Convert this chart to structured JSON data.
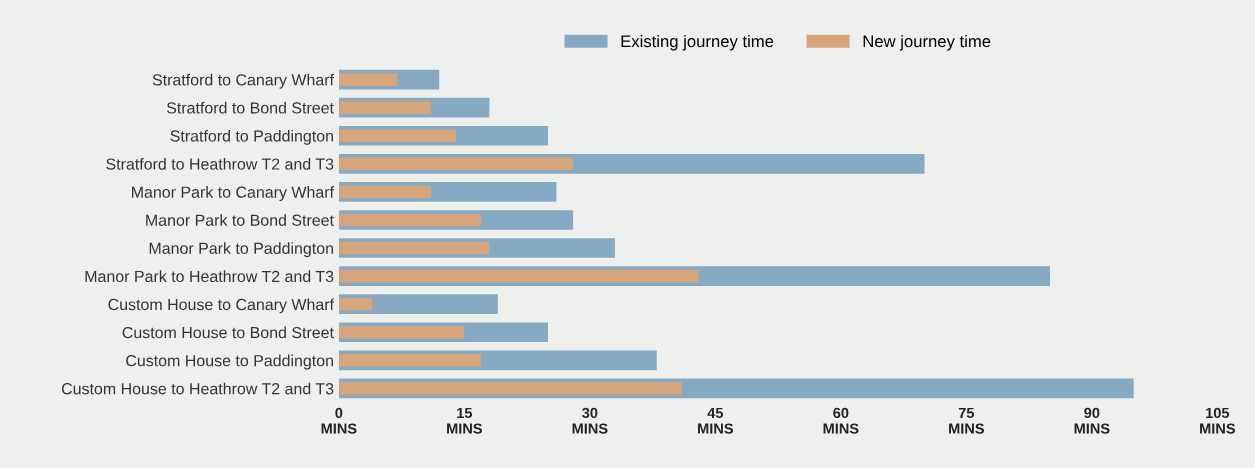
{
  "chart_data": {
    "type": "bar",
    "orientation": "horizontal",
    "categories": [
      "Stratford to Canary Wharf",
      "Stratford to Bond Street",
      "Stratford to Paddington",
      "Stratford to Heathrow T2 and T3",
      "Manor Park to Canary Wharf",
      "Manor Park to Bond Street",
      "Manor Park to Paddington",
      "Manor Park to Heathrow T2 and T3",
      "Custom House to Canary Wharf",
      "Custom House to Bond Street",
      "Custom House to Paddington",
      "Custom House to Heathrow T2 and T3"
    ],
    "series": [
      {
        "name": "Existing journey time",
        "color": "#86a9c4",
        "values": [
          12,
          18,
          25,
          70,
          26,
          28,
          33,
          85,
          19,
          25,
          38,
          95
        ]
      },
      {
        "name": "New journey time",
        "color": "#d6a57c",
        "values": [
          7,
          11,
          14,
          28,
          11,
          17,
          18,
          43,
          4,
          15,
          17,
          41
        ]
      }
    ],
    "xlim": [
      0,
      105
    ],
    "xticks": [
      {
        "value": 0,
        "label": "0\nMINS"
      },
      {
        "value": 15,
        "label": "15\nMINS"
      },
      {
        "value": 30,
        "label": "30\nMINS"
      },
      {
        "value": 45,
        "label": "45\nMINS"
      },
      {
        "value": 60,
        "label": "60\nMINS"
      },
      {
        "value": 75,
        "label": "75\nMINS"
      },
      {
        "value": 90,
        "label": "90\nMINS"
      },
      {
        "value": 105,
        "label": "105\nMINS"
      }
    ],
    "legend": "top",
    "grid": false
  }
}
